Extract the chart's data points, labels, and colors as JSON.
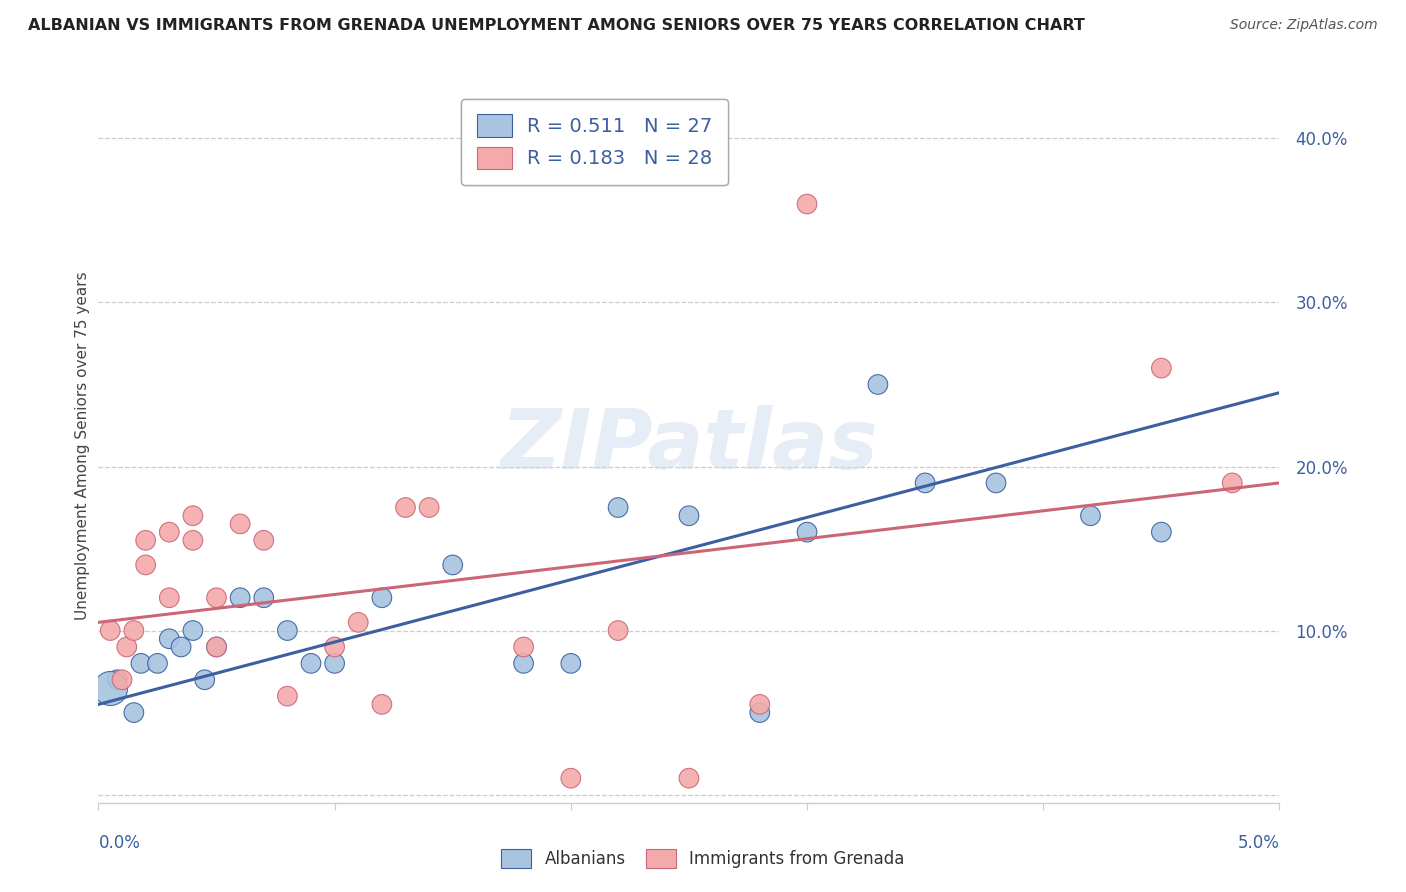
{
  "title": "ALBANIAN VS IMMIGRANTS FROM GRENADA UNEMPLOYMENT AMONG SENIORS OVER 75 YEARS CORRELATION CHART",
  "source": "Source: ZipAtlas.com",
  "ylabel": "Unemployment Among Seniors over 75 years",
  "xlim": [
    0.0,
    0.05
  ],
  "ylim": [
    -0.005,
    0.43
  ],
  "yticks": [
    0.0,
    0.1,
    0.2,
    0.3,
    0.4
  ],
  "ytick_labels": [
    "",
    "10.0%",
    "20.0%",
    "30.0%",
    "40.0%"
  ],
  "legend_r1": "0.511",
  "legend_n1": "27",
  "legend_r2": "0.183",
  "legend_n2": "28",
  "legend_label1": "Albanians",
  "legend_label2": "Immigrants from Grenada",
  "color_blue": "#A8C4E0",
  "color_pink": "#F4AAAA",
  "line_blue": "#3B5FA0",
  "line_pink": "#CC6677",
  "text_blue": "#3B5FA0",
  "watermark": "ZIPatlas",
  "albanians_x": [
    0.0008,
    0.0015,
    0.0018,
    0.0025,
    0.003,
    0.0035,
    0.004,
    0.0045,
    0.005,
    0.006,
    0.007,
    0.008,
    0.009,
    0.01,
    0.012,
    0.015,
    0.018,
    0.02,
    0.022,
    0.025,
    0.028,
    0.03,
    0.033,
    0.035,
    0.038,
    0.042,
    0.045
  ],
  "albanians_y": [
    0.07,
    0.05,
    0.08,
    0.08,
    0.095,
    0.09,
    0.1,
    0.07,
    0.09,
    0.12,
    0.12,
    0.1,
    0.08,
    0.08,
    0.12,
    0.14,
    0.08,
    0.08,
    0.175,
    0.17,
    0.05,
    0.16,
    0.25,
    0.19,
    0.19,
    0.17,
    0.16
  ],
  "albanians_sizes": [
    200,
    200,
    200,
    200,
    200,
    200,
    200,
    200,
    200,
    200,
    200,
    200,
    200,
    200,
    200,
    200,
    200,
    200,
    200,
    200,
    200,
    200,
    200,
    200,
    200,
    200,
    200
  ],
  "grenada_x": [
    0.0005,
    0.001,
    0.0012,
    0.0015,
    0.002,
    0.002,
    0.003,
    0.003,
    0.004,
    0.004,
    0.005,
    0.005,
    0.006,
    0.007,
    0.008,
    0.01,
    0.011,
    0.012,
    0.013,
    0.014,
    0.018,
    0.02,
    0.022,
    0.025,
    0.028,
    0.03,
    0.045,
    0.048
  ],
  "grenada_y": [
    0.1,
    0.07,
    0.09,
    0.1,
    0.14,
    0.155,
    0.12,
    0.16,
    0.155,
    0.17,
    0.09,
    0.12,
    0.165,
    0.155,
    0.06,
    0.09,
    0.105,
    0.055,
    0.175,
    0.175,
    0.09,
    0.01,
    0.1,
    0.01,
    0.055,
    0.36,
    0.26,
    0.19
  ],
  "grenada_sizes": [
    200,
    200,
    200,
    200,
    200,
    200,
    200,
    200,
    200,
    200,
    200,
    200,
    200,
    200,
    200,
    200,
    200,
    200,
    200,
    200,
    200,
    200,
    200,
    200,
    200,
    200,
    200,
    200
  ],
  "albanian_big_x": [
    0.0005
  ],
  "albanian_big_y": [
    0.065
  ],
  "albanian_big_size": [
    600
  ],
  "blue_line_x": [
    0.0,
    0.05
  ],
  "blue_line_y": [
    0.055,
    0.245
  ],
  "pink_line_x": [
    0.0,
    0.05
  ],
  "pink_line_y": [
    0.105,
    0.19
  ],
  "grid_color": "#CCCCCC",
  "bg_color": "#FFFFFF",
  "spine_color": "#CCCCCC"
}
